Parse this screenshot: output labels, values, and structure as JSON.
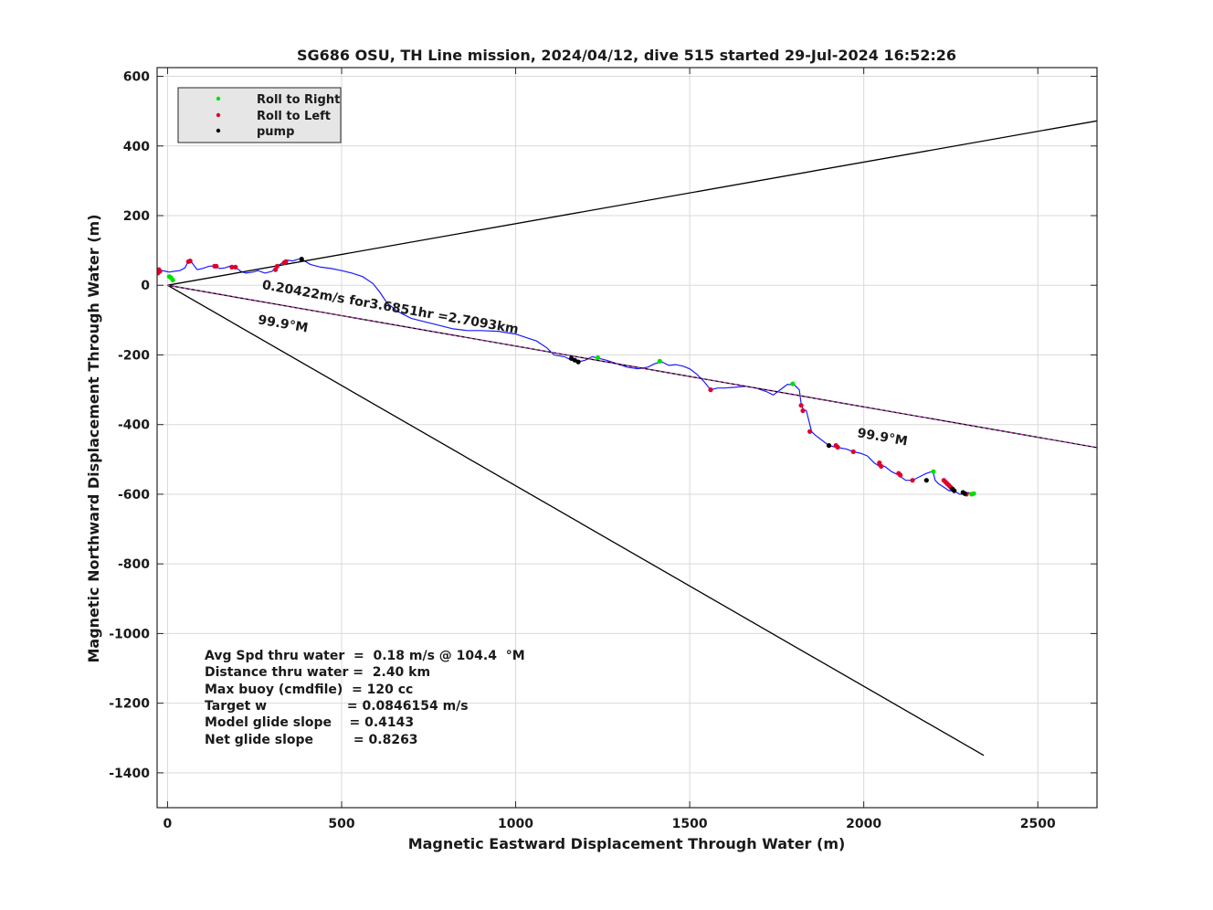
{
  "chart_data": {
    "type": "line",
    "title": "SG686 OSU, TH Line mission, 2024/04/12, dive 515 started 29-Jul-2024 16:52:26",
    "xlabel": "Magnetic Eastward Displacement Through Water (m)",
    "ylabel": "Magnetic Northward Displacement Through Water (m)",
    "xlim": [
      -30,
      2670
    ],
    "ylim": [
      -1500,
      625
    ],
    "xticks": [
      0,
      500,
      1000,
      1500,
      2000,
      2500
    ],
    "yticks": [
      600,
      400,
      200,
      0,
      -200,
      -400,
      -600,
      -800,
      -1000,
      -1200,
      -1400
    ],
    "grid": true,
    "legend_position": "top-left",
    "legend": [
      {
        "label": "Roll to Right",
        "color": "#00e000"
      },
      {
        "label": "Roll to Left",
        "color": "#e0002a"
      },
      {
        "label": "pump",
        "color": "#000000"
      }
    ],
    "series": [
      {
        "x": [
          -25,
          -28,
          -22,
          -15,
          -5,
          5,
          18,
          35,
          50,
          60,
          70,
          85,
          100,
          120,
          135,
          150,
          165,
          180,
          195,
          210,
          225,
          245,
          260,
          280,
          300,
          315,
          330,
          345,
          360,
          375,
          390,
          410,
          440,
          470,
          500,
          530,
          560,
          590,
          610,
          630,
          660,
          700,
          740,
          780,
          820,
          860,
          900,
          950,
          1000,
          1030,
          1060,
          1090,
          1110,
          1140,
          1160,
          1180,
          1200,
          1220,
          1240,
          1260,
          1290,
          1320,
          1350,
          1380,
          1400,
          1420,
          1440,
          1460,
          1480,
          1500,
          1520,
          1540,
          1560,
          1580,
          1600,
          1630,
          1660,
          1690,
          1720,
          1740,
          1760,
          1780,
          1800,
          1815,
          1820,
          1825,
          1835,
          1840,
          1845,
          1850,
          1860,
          1880,
          1900,
          1920,
          1950,
          1970,
          1990,
          2010,
          2030,
          2045,
          2060,
          2080,
          2100,
          2120,
          2140,
          2160,
          2180,
          2195,
          2200,
          2205,
          2215,
          2230,
          2245,
          2260,
          2275,
          2290,
          2300,
          2310,
          2320
        ],
        "y": [
          30,
          40,
          45,
          42,
          40,
          38,
          40,
          42,
          50,
          70,
          65,
          45,
          48,
          55,
          55,
          48,
          50,
          55,
          52,
          40,
          35,
          38,
          42,
          35,
          40,
          55,
          65,
          72,
          70,
          75,
          72,
          60,
          52,
          48,
          42,
          35,
          25,
          5,
          -20,
          -50,
          -75,
          -95,
          -105,
          -115,
          -125,
          -130,
          -130,
          -132,
          -140,
          -150,
          -160,
          -180,
          -200,
          -205,
          -215,
          -220,
          -215,
          -205,
          -210,
          -215,
          -225,
          -235,
          -240,
          -235,
          -225,
          -220,
          -230,
          -228,
          -232,
          -240,
          -255,
          -275,
          -300,
          -295,
          -295,
          -293,
          -290,
          -295,
          -305,
          -315,
          -300,
          -285,
          -285,
          -300,
          -340,
          -355,
          -360,
          -380,
          -400,
          -420,
          -430,
          -445,
          -460,
          -465,
          -470,
          -478,
          -482,
          -490,
          -510,
          -520,
          -520,
          -535,
          -545,
          -560,
          -560,
          -550,
          -540,
          -535,
          -540,
          -560,
          -570,
          -580,
          -590,
          -590,
          -600,
          -600,
          -595,
          -600,
          -598
        ],
        "color": "#1a1aff"
      },
      {
        "x": [
          0,
          2670
        ],
        "y": [
          0,
          472
        ],
        "color": "#000000"
      },
      {
        "x": [
          0,
          2345
        ],
        "y": [
          0,
          -1350
        ],
        "color": "#000000"
      },
      {
        "x": [
          0,
          2670
        ],
        "y": [
          0,
          -466
        ],
        "color": "#000000"
      },
      {
        "x": [
          0,
          2670
        ],
        "y": [
          0,
          -466
        ],
        "color": "#cc33cc"
      }
    ],
    "markers": {
      "roll_right": [
        [
          5,
          25
        ],
        [
          10,
          22
        ],
        [
          15,
          15
        ],
        [
          1236,
          -208
        ],
        [
          1414,
          -218
        ],
        [
          1796,
          -283
        ],
        [
          2200,
          -535
        ],
        [
          2310,
          -600
        ],
        [
          2316,
          -598
        ]
      ],
      "roll_left": [
        [
          -28,
          35
        ],
        [
          -25,
          45
        ],
        [
          -22,
          40
        ],
        [
          60,
          68
        ],
        [
          65,
          70
        ],
        [
          135,
          55
        ],
        [
          140,
          55
        ],
        [
          185,
          52
        ],
        [
          195,
          52
        ],
        [
          310,
          45
        ],
        [
          315,
          55
        ],
        [
          335,
          65
        ],
        [
          340,
          68
        ],
        [
          1560,
          -300
        ],
        [
          1820,
          -345
        ],
        [
          1825,
          -360
        ],
        [
          1845,
          -420
        ],
        [
          1920,
          -460
        ],
        [
          1925,
          -465
        ],
        [
          1970,
          -478
        ],
        [
          2045,
          -510
        ],
        [
          2050,
          -520
        ],
        [
          2100,
          -540
        ],
        [
          2105,
          -545
        ],
        [
          2140,
          -560
        ],
        [
          2230,
          -560
        ],
        [
          2235,
          -565
        ],
        [
          2240,
          -570
        ],
        [
          2245,
          -575
        ],
        [
          2250,
          -580
        ],
        [
          2295,
          -600
        ]
      ],
      "pump": [
        [
          385,
          75
        ],
        [
          1160,
          -210
        ],
        [
          1170,
          -215
        ],
        [
          1180,
          -220
        ],
        [
          1900,
          -460
        ],
        [
          2180,
          -560
        ],
        [
          2255,
          -585
        ],
        [
          2260,
          -590
        ],
        [
          2285,
          -595
        ],
        [
          2290,
          -598
        ]
      ]
    },
    "annotations": [
      {
        "text": "0.20422m/s for3.6851hr =2.7093km",
        "x": 270,
        "y": -10,
        "rotation": 9.9
      },
      {
        "text": "99.9°M",
        "x": 258,
        "y": -110,
        "rotation": 9.9
      },
      {
        "text": "99.9°M",
        "x": 1980,
        "y": -435,
        "rotation": 9.9
      }
    ],
    "stats": [
      "Avg Spd thru water  =  0.18 m/s @ 104.4  °M",
      "Distance thru water =  2.40 km",
      "Max buoy (cmdfile)  = 120 cc",
      "Target w                  = 0.0846154 m/s",
      "Model glide slope    = 0.4143",
      "Net glide slope         = 0.8263"
    ]
  }
}
